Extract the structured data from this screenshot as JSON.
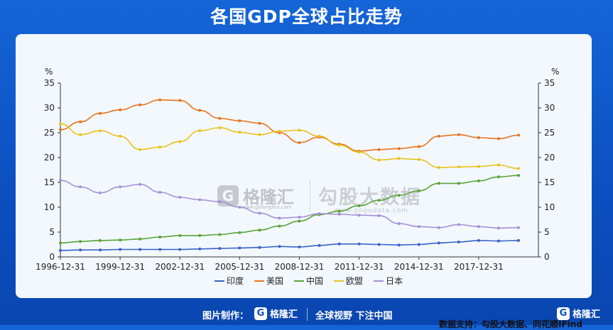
{
  "title": "各国GDP全球占比走势",
  "chart_data": {
    "type": "line",
    "y_unit_left": "%",
    "y_unit_right": "%",
    "ylim": [
      0,
      35
    ],
    "yticks": [
      0,
      5,
      10,
      15,
      20,
      25,
      30,
      35
    ],
    "xlim": [
      1996.99,
      2020.99
    ],
    "x_tick_labels": [
      "1996-12-31",
      "1999-12-31",
      "2002-12-31",
      "2005-12-31",
      "2008-12-31",
      "2011-12-31",
      "2014-12-31",
      "2017-12-31"
    ],
    "x_tick_years": [
      1996,
      1999,
      2002,
      2005,
      2008,
      2011,
      2014,
      2017
    ],
    "grid": false,
    "legend_position": "bottom",
    "x_years": [
      1996,
      1997,
      1998,
      1999,
      2000,
      2001,
      2002,
      2003,
      2004,
      2005,
      2006,
      2007,
      2008,
      2009,
      2010,
      2011,
      2012,
      2013,
      2014,
      2015,
      2016,
      2017,
      2018,
      2019
    ],
    "series": [
      {
        "name": "印度",
        "color": "#3a63c6",
        "values": [
          1.3,
          1.4,
          1.4,
          1.5,
          1.5,
          1.5,
          1.5,
          1.6,
          1.7,
          1.8,
          1.9,
          2.1,
          2.0,
          2.3,
          2.6,
          2.6,
          2.5,
          2.4,
          2.5,
          2.8,
          3.0,
          3.3,
          3.2,
          3.3
        ]
      },
      {
        "name": "美国",
        "color": "#e8731e",
        "values": [
          25.6,
          27.2,
          28.9,
          29.6,
          30.6,
          31.6,
          31.5,
          29.5,
          27.9,
          27.4,
          26.9,
          25.0,
          23.0,
          24.1,
          22.7,
          21.3,
          21.6,
          21.8,
          22.2,
          24.3,
          24.6,
          24.0,
          23.8,
          24.5
        ]
      },
      {
        "name": "中国",
        "color": "#5aa336",
        "values": [
          2.8,
          3.1,
          3.3,
          3.4,
          3.6,
          4.0,
          4.3,
          4.3,
          4.5,
          4.9,
          5.4,
          6.2,
          7.2,
          8.5,
          9.2,
          10.3,
          11.4,
          12.4,
          13.3,
          14.8,
          14.8,
          15.3,
          16.1,
          16.4
        ]
      },
      {
        "name": "欧盟",
        "color": "#e8c31e",
        "values": [
          26.8,
          24.6,
          25.4,
          24.3,
          21.6,
          22.1,
          23.2,
          25.4,
          26.0,
          25.1,
          24.6,
          25.3,
          25.5,
          24.3,
          22.5,
          21.1,
          19.5,
          19.8,
          19.6,
          18.0,
          18.1,
          18.2,
          18.5,
          17.8
        ]
      },
      {
        "name": "日本",
        "color": "#a58fd6",
        "values": [
          15.4,
          14.1,
          12.9,
          14.1,
          14.6,
          13.0,
          12.0,
          11.5,
          11.1,
          10.0,
          8.8,
          7.8,
          8.0,
          8.7,
          8.6,
          8.4,
          8.3,
          6.7,
          6.1,
          5.9,
          6.5,
          6.1,
          5.8,
          5.9
        ]
      }
    ]
  },
  "source": "数据支持：勾股大数据、同花顺IFind",
  "watermark": {
    "logo_mark": "G",
    "logo_name": "格隆汇",
    "logo_sub": "www.gelonghui.com",
    "brand2": "勾股大数据",
    "brand2_sub": "www.gogudata.com"
  },
  "footer": {
    "made_by": "图片制作：",
    "logo_mark": "G",
    "logo_name": "格隆汇",
    "slogan": "全球视野 下注中国",
    "right_logo_mark": "G",
    "right_logo_name": "格隆汇"
  }
}
